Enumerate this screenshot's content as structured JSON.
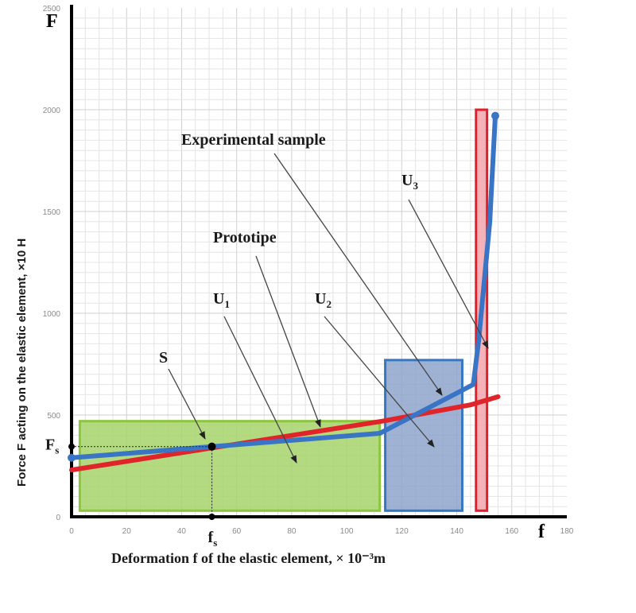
{
  "chart_data": {
    "type": "line",
    "xlabel": "Deformation f of the elastic element, × 10⁻³m",
    "ylabel": "Force F acting on the elastic element, ×10 H",
    "x_axis_letter": "f",
    "y_axis_letter": "F",
    "xlim": [
      0,
      180
    ],
    "ylim": [
      0,
      2500
    ],
    "x_ticks": [
      "0",
      "20",
      "40",
      "60",
      "80",
      "100",
      "120",
      "140",
      "160",
      "180"
    ],
    "y_ticks": [
      "0",
      "500",
      "1000",
      "1500",
      "2000",
      "2500"
    ],
    "grid": true,
    "series": [
      {
        "name": "Prototipe",
        "color": "#e0242a",
        "x": [
          0,
          113,
          145,
          155
        ],
        "y": [
          230,
          470,
          550,
          590
        ]
      },
      {
        "name": "Experimental sample",
        "color": "#3a74c4",
        "x": [
          0,
          112,
          146,
          148,
          152,
          154
        ],
        "y": [
          290,
          410,
          650,
          870,
          1450,
          1970
        ]
      }
    ],
    "regions": [
      {
        "name": "U1",
        "x0": 3,
        "x1": 112,
        "y0": 30,
        "y1": 470,
        "fill": "#a6d36b",
        "stroke": "#8cc63f"
      },
      {
        "name": "U2",
        "x0": 114,
        "x1": 142,
        "y0": 30,
        "y1": 770,
        "fill": "#8ea4cc",
        "stroke": "#3478c4"
      },
      {
        "name": "U3",
        "x0": 147,
        "x1": 151,
        "y0": 30,
        "y1": 2000,
        "fill": "#f3a4ad",
        "stroke": "#e31e2b"
      }
    ],
    "point_S": {
      "label": "S",
      "x": 51,
      "y": 345,
      "f_label": "f",
      "f_sub": "s",
      "F_label": "F",
      "F_sub": "s"
    },
    "annotations": [
      {
        "text": "Experimental  sample",
        "series": "Experimental sample"
      },
      {
        "text": "Prototipe",
        "series": "Prototipe"
      },
      {
        "text": "U",
        "sub": "1"
      },
      {
        "text": "U",
        "sub": "2"
      },
      {
        "text": "U",
        "sub": "3"
      },
      {
        "text": "S"
      }
    ]
  }
}
